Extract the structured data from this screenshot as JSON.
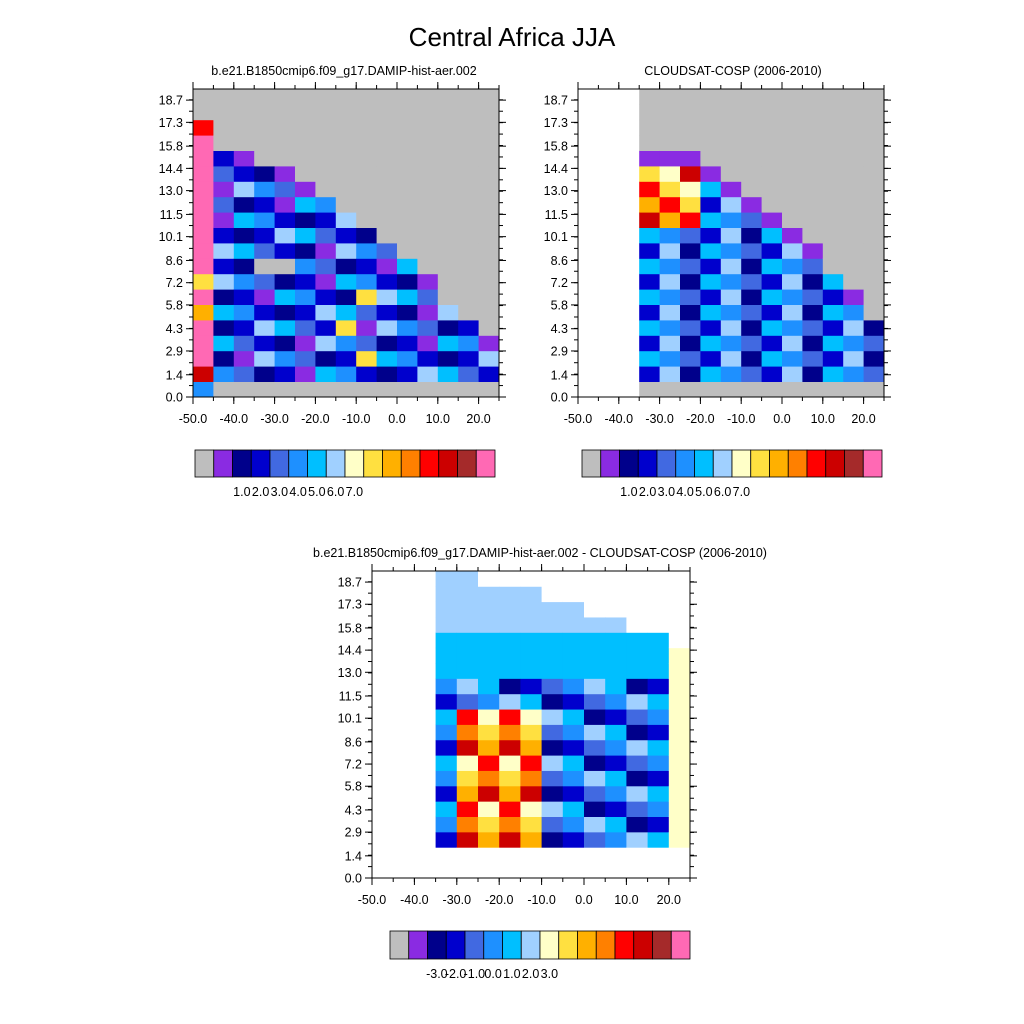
{
  "figure": {
    "title": "Central Africa JJA"
  },
  "chart_data": [
    {
      "type": "heatmap",
      "title": "b.e21.B1850cmip6.f09_g17.DAMIP-hist-aer.002",
      "x_ticks": [
        "-50.0",
        "-40.0",
        "-30.0",
        "-20.0",
        "-10.0",
        "0.0",
        "10.0",
        "20.0"
      ],
      "y_ticks": [
        "0.0",
        "1.4",
        "2.9",
        "4.3",
        "5.8",
        "7.2",
        "8.6",
        "10.1",
        "11.5",
        "13.0",
        "14.4",
        "15.8",
        "17.3",
        "18.7"
      ],
      "xlim": [
        -50,
        25
      ],
      "ylim": [
        0,
        19.4
      ],
      "background_color": "#bebebe",
      "colorbar_labels": [
        "1.0",
        "2.0",
        "3.0",
        "4.0",
        "5.0",
        "6.0",
        "7.0"
      ],
      "colorbar_colors": [
        "#bebebe",
        "#8a2be2",
        "#00008b",
        "#0000cd",
        "#4169e1",
        "#1e90ff",
        "#00bfff",
        "#a0d0ff",
        "#ffffc8",
        "#ffe040",
        "#ffb000",
        "#ff8000",
        "#ff0000",
        "#cc0000",
        "#a52a2a",
        "#ff69b4"
      ]
    },
    {
      "type": "heatmap",
      "title": "CLOUDSAT-COSP (2006-2010)",
      "x_ticks": [
        "-50.0",
        "-40.0",
        "-30.0",
        "-20.0",
        "-10.0",
        "0.0",
        "10.0",
        "20.0"
      ],
      "y_ticks": [
        "0.0",
        "1.4",
        "2.9",
        "4.3",
        "5.8",
        "7.2",
        "8.6",
        "10.1",
        "11.5",
        "13.0",
        "14.4",
        "15.8",
        "17.3",
        "18.7"
      ],
      "xlim": [
        -50,
        25
      ],
      "ylim": [
        0,
        19.4
      ],
      "background_color": "#bebebe",
      "colorbar_labels": [
        "1.0",
        "2.0",
        "3.0",
        "4.0",
        "5.0",
        "6.0",
        "7.0"
      ],
      "colorbar_colors": [
        "#bebebe",
        "#8a2be2",
        "#00008b",
        "#0000cd",
        "#4169e1",
        "#1e90ff",
        "#00bfff",
        "#a0d0ff",
        "#ffffc8",
        "#ffe040",
        "#ffb000",
        "#ff8000",
        "#ff0000",
        "#cc0000",
        "#a52a2a",
        "#ff69b4"
      ]
    },
    {
      "type": "heatmap",
      "title": "b.e21.B1850cmip6.f09_g17.DAMIP-hist-aer.002 - CLOUDSAT-COSP (2006-2010)",
      "x_ticks": [
        "-50.0",
        "-40.0",
        "-30.0",
        "-20.0",
        "-10.0",
        "0.0",
        "10.0",
        "20.0"
      ],
      "y_ticks": [
        "0.0",
        "1.4",
        "2.9",
        "4.3",
        "5.8",
        "7.2",
        "8.6",
        "10.1",
        "11.5",
        "13.0",
        "14.4",
        "15.8",
        "17.3",
        "18.7"
      ],
      "xlim": [
        -50,
        25
      ],
      "ylim": [
        0,
        19.4
      ],
      "background_color": "#ffffff",
      "colorbar_labels": [
        "-3.0",
        "-2.0",
        "-1.0",
        "0.0",
        "1.0",
        "2.0",
        "3.0"
      ],
      "colorbar_colors": [
        "#bebebe",
        "#8a2be2",
        "#00008b",
        "#0000cd",
        "#4169e1",
        "#1e90ff",
        "#00bfff",
        "#a0d0ff",
        "#ffffc8",
        "#ffe040",
        "#ffb000",
        "#ff8000",
        "#ff0000",
        "#cc0000",
        "#a52a2a",
        "#ff69b4"
      ]
    }
  ]
}
